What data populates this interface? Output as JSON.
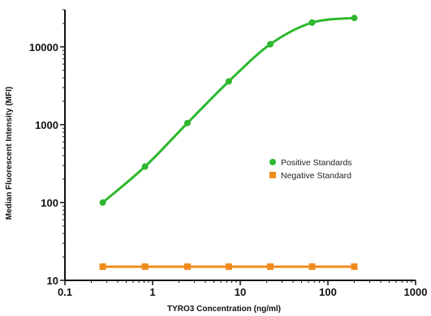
{
  "chart_data": {
    "type": "line",
    "title": "",
    "xlabel": "TYRO3 Concentration (ng/ml)",
    "ylabel": "Median Fluorescent Intensity (MFI)",
    "x_scale": "log",
    "y_scale": "log",
    "xlim": [
      0.1,
      1000
    ],
    "ylim": [
      10,
      30000
    ],
    "x_ticks": [
      {
        "value": 0.1,
        "label": "0.1"
      },
      {
        "value": 1,
        "label": "1"
      },
      {
        "value": 10,
        "label": "10"
      },
      {
        "value": 100,
        "label": "100"
      },
      {
        "value": 1000,
        "label": "1000"
      }
    ],
    "y_ticks": [
      {
        "value": 10,
        "label": "10"
      },
      {
        "value": 100,
        "label": "100"
      },
      {
        "value": 1000,
        "label": "1000"
      },
      {
        "value": 10000,
        "label": "10000"
      }
    ],
    "grid": false,
    "legend_position": "right",
    "series": [
      {
        "name": "Positive Standards",
        "color": "#2db82d",
        "marker": "circle",
        "x": [
          0.27,
          0.82,
          2.5,
          7.4,
          22,
          66,
          200
        ],
        "y": [
          100,
          290,
          1050,
          3600,
          10800,
          20500,
          23500
        ],
        "curve": "fitted"
      },
      {
        "name": "Negative Standard",
        "color": "#f08a1c",
        "marker": "square",
        "x": [
          0.27,
          0.82,
          2.5,
          7.4,
          22,
          66,
          200
        ],
        "y": [
          15,
          15,
          15,
          15,
          15,
          15,
          15
        ],
        "curve": "linear"
      }
    ]
  }
}
